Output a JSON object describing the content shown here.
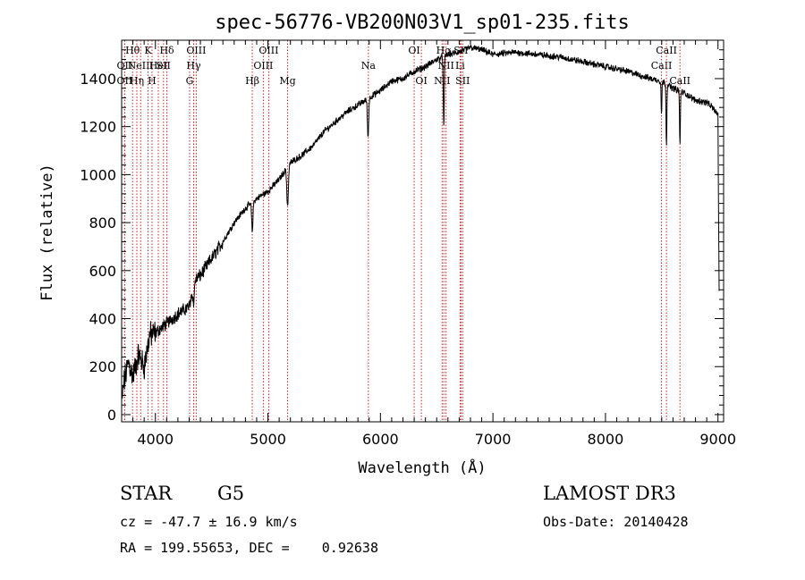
{
  "chart_data": {
    "type": "line",
    "title": "spec-56776-VB200N03V1_sp01-235.fits",
    "xlabel": "Wavelength (Å)",
    "ylabel": "Flux (relative)",
    "xlim": [
      3700,
      9050
    ],
    "ylim": [
      -30,
      1560
    ],
    "xticks": [
      4000,
      5000,
      6000,
      7000,
      8000,
      9000
    ],
    "yticks": [
      0,
      200,
      400,
      600,
      800,
      1000,
      1200,
      1400
    ],
    "x_minor_step": 100,
    "y_minor_step": 40,
    "colors": {
      "spectrum": "#000000",
      "line_marker": "#cc2222"
    },
    "spectrum_anchors": [
      [
        3700,
        50
      ],
      [
        3720,
        130
      ],
      [
        3760,
        220
      ],
      [
        3800,
        160
      ],
      [
        3850,
        250
      ],
      [
        3900,
        200
      ],
      [
        3950,
        330
      ],
      [
        4000,
        340
      ],
      [
        4050,
        360
      ],
      [
        4100,
        380
      ],
      [
        4200,
        420
      ],
      [
        4300,
        450
      ],
      [
        4350,
        560
      ],
      [
        4400,
        580
      ],
      [
        4500,
        650
      ],
      [
        4600,
        720
      ],
      [
        4700,
        800
      ],
      [
        4800,
        860
      ],
      [
        4900,
        900
      ],
      [
        5000,
        930
      ],
      [
        5100,
        980
      ],
      [
        5200,
        1050
      ],
      [
        5300,
        1080
      ],
      [
        5400,
        1120
      ],
      [
        5500,
        1180
      ],
      [
        5600,
        1220
      ],
      [
        5700,
        1260
      ],
      [
        5800,
        1290
      ],
      [
        5900,
        1320
      ],
      [
        6000,
        1350
      ],
      [
        6100,
        1390
      ],
      [
        6200,
        1400
      ],
      [
        6300,
        1430
      ],
      [
        6400,
        1450
      ],
      [
        6500,
        1480
      ],
      [
        6600,
        1500
      ],
      [
        6700,
        1510
      ],
      [
        6800,
        1530
      ],
      [
        6900,
        1520
      ],
      [
        7000,
        1500
      ],
      [
        7200,
        1510
      ],
      [
        7400,
        1500
      ],
      [
        7600,
        1490
      ],
      [
        7800,
        1470
      ],
      [
        8000,
        1450
      ],
      [
        8200,
        1430
      ],
      [
        8400,
        1400
      ],
      [
        8500,
        1390
      ],
      [
        8600,
        1360
      ],
      [
        8700,
        1340
      ],
      [
        8800,
        1310
      ],
      [
        8900,
        1300
      ],
      [
        8950,
        1280
      ],
      [
        9000,
        1250
      ],
      [
        9010,
        500
      ]
    ],
    "absorption_features": [
      {
        "x": 4340,
        "depth": 80,
        "width": 8
      },
      {
        "x": 4861,
        "depth": 120,
        "width": 8
      },
      {
        "x": 5175,
        "depth": 160,
        "width": 10
      },
      {
        "x": 5890,
        "depth": 160,
        "width": 8
      },
      {
        "x": 6563,
        "depth": 300,
        "width": 6
      },
      {
        "x": 8498,
        "depth": 140,
        "width": 5
      },
      {
        "x": 8542,
        "depth": 250,
        "width": 5
      },
      {
        "x": 8662,
        "depth": 220,
        "width": 5
      }
    ],
    "line_markers": [
      {
        "x": 3797,
        "label": "Hθ",
        "row": 1
      },
      {
        "x": 3727,
        "label": "OII",
        "row": 2
      },
      {
        "x": 3727,
        "label": "OII",
        "row": 3
      },
      {
        "x": 3835,
        "label": "Hη",
        "row": 3
      },
      {
        "x": 3869,
        "label": "NeIII",
        "row": 2
      },
      {
        "x": 3934,
        "label": "K",
        "row": 1
      },
      {
        "x": 3970,
        "label": "H",
        "row": 3
      },
      {
        "x": 4026,
        "label": "HeI",
        "row": 2
      },
      {
        "x": 4072,
        "label": "SII",
        "row": 2
      },
      {
        "x": 4102,
        "label": "Hδ",
        "row": 1
      },
      {
        "x": 4340,
        "label": "Hγ",
        "row": 2
      },
      {
        "x": 4304,
        "label": "G",
        "row": 3
      },
      {
        "x": 4363,
        "label": "OIII",
        "row": 1
      },
      {
        "x": 4861,
        "label": "Hβ",
        "row": 3
      },
      {
        "x": 4959,
        "label": "OIII",
        "row": 2
      },
      {
        "x": 5007,
        "label": "OIII",
        "row": 1
      },
      {
        "x": 5175,
        "label": "Mg",
        "row": 3
      },
      {
        "x": 5893,
        "label": "Na",
        "row": 2
      },
      {
        "x": 6300,
        "label": "OI",
        "row": 1
      },
      {
        "x": 6364,
        "label": "OI",
        "row": 3
      },
      {
        "x": 6548,
        "label": "NII",
        "row": 3
      },
      {
        "x": 6563,
        "label": "Hα",
        "row": 1
      },
      {
        "x": 6583,
        "label": "NII",
        "row": 2
      },
      {
        "x": 6708,
        "label": "Li",
        "row": 2
      },
      {
        "x": 6716,
        "label": "SII",
        "row": 1
      },
      {
        "x": 6731,
        "label": "SII",
        "row": 3
      },
      {
        "x": 8498,
        "label": "CaII",
        "row": 2
      },
      {
        "x": 8542,
        "label": "CaII",
        "row": 1
      },
      {
        "x": 8662,
        "label": "CaII",
        "row": 3
      }
    ]
  },
  "info": {
    "object_class": "STAR",
    "subclass": "G5",
    "survey": "LAMOST DR3",
    "cz": "cz = -47.7 ± 16.9 km/s",
    "obs_date": "Obs-Date: 20140428",
    "coords": "RA = 199.55653, DEC =    0.92638"
  }
}
